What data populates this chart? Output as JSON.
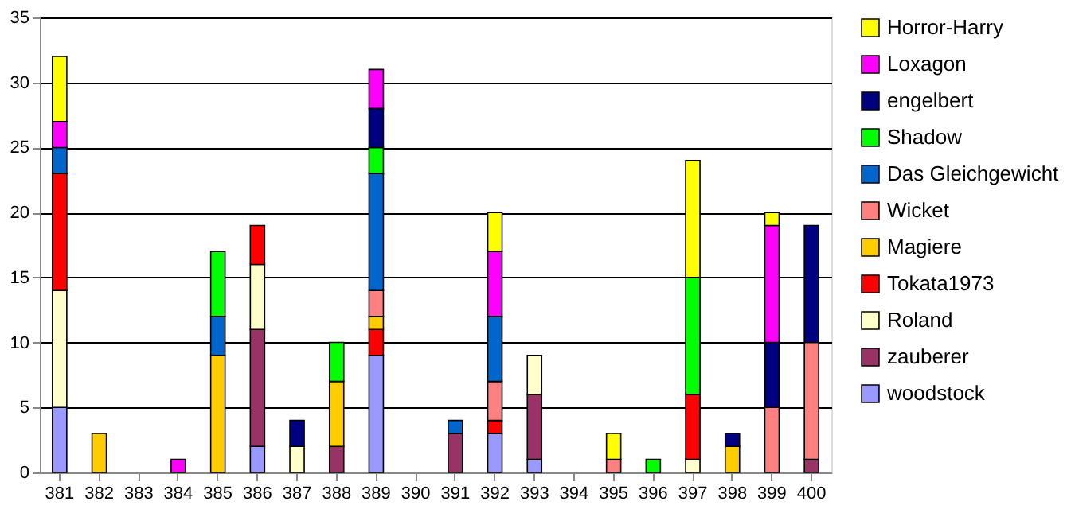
{
  "chart_data": {
    "type": "bar",
    "stacked": true,
    "categories": [
      "381",
      "382",
      "383",
      "384",
      "385",
      "386",
      "387",
      "388",
      "389",
      "390",
      "391",
      "392",
      "393",
      "394",
      "395",
      "396",
      "397",
      "398",
      "399",
      "400"
    ],
    "series": [
      {
        "name": "woodstock",
        "color": "#9999ff",
        "values": [
          5,
          null,
          null,
          null,
          null,
          2,
          null,
          null,
          9,
          null,
          null,
          3,
          1,
          null,
          null,
          null,
          null,
          null,
          null,
          null
        ]
      },
      {
        "name": "zauberer",
        "color": "#993366",
        "values": [
          null,
          null,
          null,
          null,
          null,
          9,
          null,
          2,
          null,
          null,
          3,
          null,
          5,
          null,
          null,
          null,
          null,
          null,
          null,
          1
        ]
      },
      {
        "name": "Roland",
        "color": "#ffffcc",
        "values": [
          9,
          null,
          null,
          null,
          null,
          5,
          2,
          null,
          null,
          null,
          null,
          null,
          3,
          null,
          null,
          null,
          1,
          null,
          null,
          null
        ]
      },
      {
        "name": "Tokata1973",
        "color": "#ff0000",
        "values": [
          9,
          null,
          null,
          null,
          null,
          3,
          null,
          null,
          2,
          null,
          null,
          1,
          null,
          null,
          null,
          null,
          5,
          null,
          null,
          null
        ]
      },
      {
        "name": "Magiere",
        "color": "#ffcc00",
        "values": [
          null,
          3,
          null,
          null,
          9,
          null,
          null,
          5,
          1,
          null,
          null,
          null,
          null,
          null,
          null,
          null,
          null,
          2,
          null,
          null
        ]
      },
      {
        "name": "Wicket",
        "color": "#ff8080",
        "values": [
          null,
          null,
          null,
          null,
          null,
          null,
          null,
          null,
          2,
          null,
          null,
          3,
          null,
          null,
          1,
          null,
          null,
          null,
          5,
          9
        ]
      },
      {
        "name": "Das Gleichgewicht",
        "color": "#0066cc",
        "values": [
          2,
          null,
          null,
          null,
          3,
          null,
          null,
          null,
          9,
          null,
          1,
          5,
          null,
          null,
          null,
          null,
          null,
          null,
          null,
          null
        ]
      },
      {
        "name": "Shadow",
        "color": "#00ff00",
        "values": [
          null,
          null,
          null,
          null,
          5,
          null,
          null,
          3,
          2,
          null,
          null,
          null,
          null,
          null,
          null,
          1,
          9,
          null,
          null,
          null
        ]
      },
      {
        "name": "engelbert",
        "color": "#000080",
        "values": [
          null,
          null,
          null,
          null,
          null,
          null,
          2,
          null,
          3,
          null,
          null,
          null,
          null,
          null,
          null,
          null,
          null,
          1,
          5,
          9
        ]
      },
      {
        "name": "Loxagon",
        "color": "#ff00ff",
        "values": [
          2,
          null,
          null,
          1,
          null,
          null,
          null,
          null,
          3,
          null,
          null,
          5,
          null,
          null,
          null,
          null,
          null,
          null,
          9,
          null
        ]
      },
      {
        "name": "Horror-Harry",
        "color": "#ffff00",
        "values": [
          5,
          null,
          null,
          null,
          null,
          null,
          null,
          null,
          null,
          null,
          null,
          3,
          null,
          null,
          2,
          null,
          9,
          null,
          1,
          null
        ]
      }
    ],
    "ylim": [
      0,
      35
    ],
    "yticks": [
      0,
      5,
      10,
      15,
      20,
      25,
      30,
      35
    ],
    "grid": "y",
    "legend": "right"
  }
}
